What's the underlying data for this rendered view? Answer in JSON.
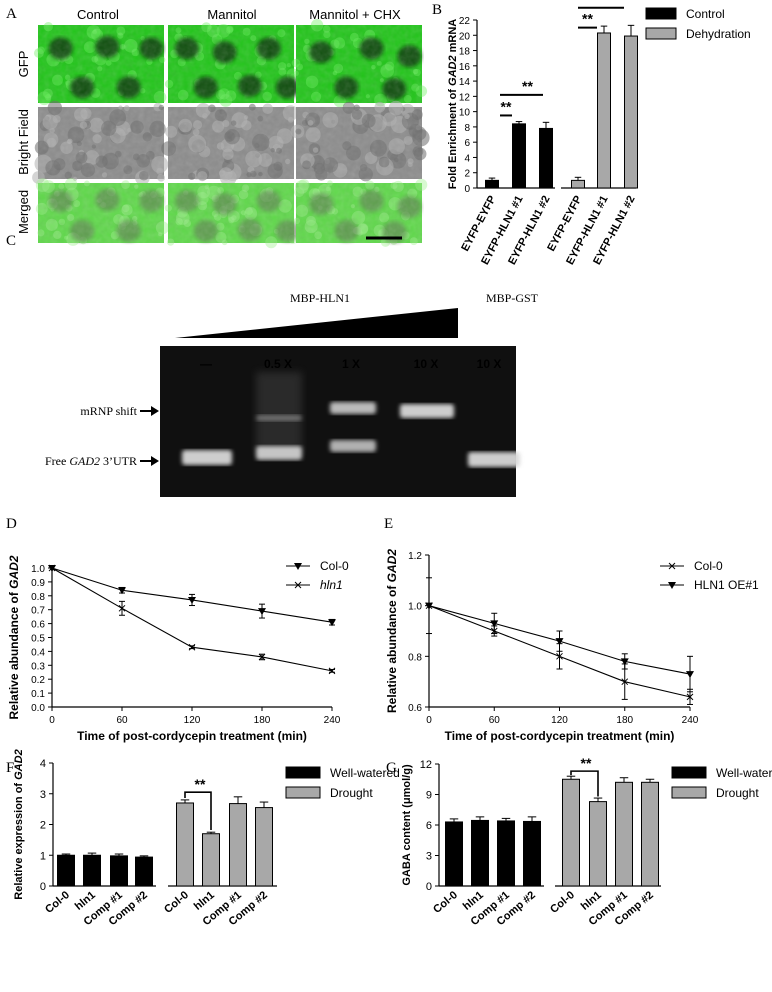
{
  "colors": {
    "gfp_green": "#22c51a",
    "gfp_dark": "#0a3a08",
    "bright_gray": "#8c8c8c",
    "merged_green": "#5fd84a",
    "gel_bg": "#111111",
    "band": "#d8d8d8",
    "bar_black": "#000000",
    "bar_gray": "#a8a8a8"
  },
  "panels": {
    "a": {
      "label": "A",
      "columns": [
        "Control",
        "Mannitol",
        "Mannitol + CHX"
      ],
      "rows": [
        "GFP",
        "Bright Field",
        "Merged"
      ]
    },
    "b": {
      "label": "B"
    },
    "c": {
      "label": "C",
      "protein_hln1": "MBP-HLN1",
      "protein_gst": "MBP-GST",
      "lanes": [
        "—",
        "0.5 X",
        "1 X",
        "10 X",
        "10 X"
      ],
      "shift_label": "mRNP shift",
      "free_label_prefix": "Free ",
      "free_label_gene": "GAD2",
      "free_label_suffix": " 3’UTR"
    },
    "d": {
      "label": "D"
    },
    "e": {
      "label": "E"
    },
    "f": {
      "label": "F"
    },
    "g": {
      "label": "G"
    }
  },
  "chart_data": [
    {
      "id": "B",
      "type": "bar",
      "ylabel_prefix": "Fold Enrichment of ",
      "ylabel_gene": "GAD2",
      "ylabel_suffix": " mRNA",
      "ylim": [
        0,
        22
      ],
      "yticks": [
        0,
        2,
        4,
        6,
        8,
        10,
        12,
        14,
        16,
        18,
        20,
        22
      ],
      "categories": [
        "EYFP-EYFP",
        "EYFP-HLN1 #1",
        "EYFP-HLN1 #2",
        "EYFP-EYFP",
        "EYFP-HLN1 #1",
        "EYFP-HLN1 #2"
      ],
      "groups": [
        {
          "name": "Control",
          "color": "#000000",
          "values": [
            1.0,
            8.4,
            7.8
          ],
          "errors": [
            0.3,
            0.3,
            0.8
          ]
        },
        {
          "name": "Dehydration",
          "color": "#a8a8a8",
          "values": [
            1.0,
            20.3,
            19.9
          ],
          "errors": [
            0.4,
            0.9,
            1.4
          ]
        }
      ],
      "legend": [
        "Control",
        "Dehydration"
      ],
      "significance": "**",
      "legend_position": "top-right"
    },
    {
      "id": "D",
      "type": "line",
      "xlabel": "Time of post-cordycepin treatment (min)",
      "ylabel_prefix": "Relative abundance of ",
      "ylabel_gene": "GAD2",
      "x": [
        0,
        60,
        120,
        180,
        240
      ],
      "xlim": [
        0,
        240
      ],
      "ylim": [
        0,
        1.0
      ],
      "yticks": [
        0.0,
        0.1,
        0.2,
        0.3,
        0.4,
        0.5,
        0.6,
        0.7,
        0.8,
        0.9,
        1.0
      ],
      "series": [
        {
          "name": "Col-0",
          "marker": "triangle-down",
          "values": [
            1.0,
            0.84,
            0.77,
            0.69,
            0.61
          ],
          "errors": [
            0.0,
            0.02,
            0.04,
            0.05,
            0.02
          ]
        },
        {
          "name": "hln1",
          "italic": true,
          "marker": "cross",
          "values": [
            1.0,
            0.71,
            0.43,
            0.36,
            0.26
          ],
          "errors": [
            0.0,
            0.05,
            0.01,
            0.02,
            0.01
          ]
        }
      ],
      "legend_position": "top-right"
    },
    {
      "id": "E",
      "type": "line",
      "xlabel": "Time of post-cordycepin treatment (min)",
      "ylabel_prefix": "Relative abundance of ",
      "ylabel_gene": "GAD2",
      "x": [
        0,
        60,
        120,
        180,
        240
      ],
      "xlim": [
        0,
        240
      ],
      "ylim": [
        0.6,
        1.2
      ],
      "yticks": [
        0.6,
        0.8,
        1.0,
        1.2
      ],
      "series": [
        {
          "name": "Col-0",
          "marker": "cross",
          "values": [
            1.0,
            0.9,
            0.8,
            0.7,
            0.64
          ],
          "errors": [
            0.11,
            0.02,
            0.05,
            0.07,
            0.03
          ]
        },
        {
          "name": "HLN1 OE#1",
          "marker": "triangle-down",
          "values": [
            1.0,
            0.93,
            0.86,
            0.78,
            0.73
          ],
          "errors": [
            0.0,
            0.04,
            0.04,
            0.03,
            0.07
          ]
        }
      ],
      "legend_position": "top-right"
    },
    {
      "id": "F",
      "type": "bar",
      "ylabel_prefix": "Relative expression of ",
      "ylabel_gene": "GAD2",
      "ylim": [
        0,
        4
      ],
      "yticks": [
        0,
        1,
        2,
        3,
        4
      ],
      "categories": [
        "Col-0",
        "hln1",
        "Comp #1",
        "Comp #2",
        "Col-0",
        "hln1",
        "Comp #1",
        "Comp #2"
      ],
      "groups": [
        {
          "name": "Well-watered",
          "color": "#000000",
          "values": [
            1.0,
            1.0,
            0.98,
            0.94
          ],
          "errors": [
            0.04,
            0.07,
            0.06,
            0.04
          ]
        },
        {
          "name": "Drought",
          "color": "#a8a8a8",
          "values": [
            2.7,
            1.7,
            2.68,
            2.55
          ],
          "errors": [
            0.1,
            0.05,
            0.22,
            0.18
          ]
        }
      ],
      "legend": [
        "Well-watered",
        "Drought"
      ],
      "significance": "**",
      "legend_position": "top-right"
    },
    {
      "id": "G",
      "type": "bar",
      "ylabel": "GABA content (μmol/g)",
      "ylim": [
        0,
        12
      ],
      "yticks": [
        0,
        3,
        6,
        9,
        12
      ],
      "categories": [
        "Col-0",
        "hln1",
        "Comp #1",
        "Comp #2",
        "Col-0",
        "hln1",
        "Comp #1",
        "Comp #2"
      ],
      "groups": [
        {
          "name": "Well-watered",
          "color": "#000000",
          "values": [
            6.3,
            6.45,
            6.4,
            6.35
          ],
          "errors": [
            0.3,
            0.35,
            0.25,
            0.45
          ]
        },
        {
          "name": "Drought",
          "color": "#a8a8a8",
          "values": [
            10.5,
            8.3,
            10.2,
            10.2
          ],
          "errors": [
            0.3,
            0.35,
            0.45,
            0.3
          ]
        }
      ],
      "legend": [
        "Well-watered",
        "Drought"
      ],
      "significance": "**",
      "legend_position": "top-right"
    }
  ]
}
